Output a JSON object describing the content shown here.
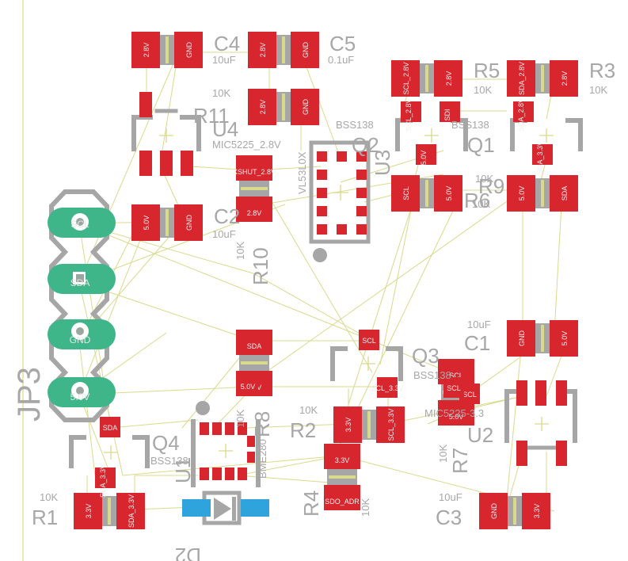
{
  "board": {
    "colors": {
      "background": "#ffffff",
      "pad": "#d8262f",
      "pad_dark": "#b81c24",
      "silk": "#a6a6a6",
      "silk_text": "#a7a7a7",
      "ratsnest": "#d9d98c",
      "header_pad": "#3fb58a",
      "diode_pad": "#2fa4dc",
      "edge": "#e8e090"
    },
    "components": [
      {
        "id": "C4",
        "label": "C4",
        "value": "10uF",
        "pads": [
          "2.8V",
          "GND"
        ]
      },
      {
        "id": "C5",
        "label": "C5",
        "value": "0.1uF",
        "pads": [
          "2.8V",
          "GND"
        ]
      },
      {
        "id": "R11",
        "label": "R11",
        "value": "10K",
        "pads": [
          "2.8V",
          "GND"
        ]
      },
      {
        "id": "U4",
        "label": "U4",
        "value": "MIC5225_2.8V"
      },
      {
        "id": "C2",
        "label": "C2",
        "value": "10uF",
        "pads": [
          "5.0V",
          "GND"
        ]
      },
      {
        "id": "R10",
        "label": "R10",
        "value": "10K",
        "pads": [
          "XSHUT_2.8V",
          "2.8V"
        ]
      },
      {
        "id": "U3",
        "label": "U3",
        "value": "VL53L0X"
      },
      {
        "id": "Q2",
        "label": "Q2",
        "value": "BSS138"
      },
      {
        "id": "Q1",
        "label": "Q1",
        "value": "BSS138"
      },
      {
        "id": "R5",
        "label": "R5",
        "value": "10K",
        "pads": [
          "SCL_2.8V",
          "2.8V"
        ]
      },
      {
        "id": "R3",
        "label": "R3",
        "value": "10K",
        "pads": [
          "SDA_2.8V",
          "2.8V"
        ]
      },
      {
        "id": "R6",
        "label": "R6",
        "value": "10K",
        "pads": [
          "SCL",
          "5.0V"
        ]
      },
      {
        "id": "R9",
        "label": "R9",
        "value": "10K",
        "pads": [
          "5.0V",
          "SDA"
        ]
      },
      {
        "id": "JP3",
        "label": "JP3",
        "pins": [
          "SCL",
          "SDA",
          "GND",
          "5.0V"
        ]
      },
      {
        "id": "C1",
        "label": "C1",
        "value": "10uF",
        "pads": [
          "GND",
          "5.0V"
        ]
      },
      {
        "id": "Q3",
        "label": "Q3",
        "value": "BSS138"
      },
      {
        "id": "R8",
        "label": "R8",
        "value": "10K",
        "pads": [
          "SDA",
          "5.0V"
        ]
      },
      {
        "id": "R2",
        "label": "R2",
        "value": "10K",
        "pads": [
          "3.3V",
          "SCL_3.3V"
        ]
      },
      {
        "id": "R7",
        "label": "R7",
        "value": "10K",
        "pads": [
          "SCL",
          "5.0V"
        ]
      },
      {
        "id": "U2",
        "label": "U2",
        "value": "MIC5225-3.3"
      },
      {
        "id": "Q4",
        "label": "Q4",
        "value": "BSS138"
      },
      {
        "id": "U1",
        "label": "U1",
        "value": "BME280"
      },
      {
        "id": "R4",
        "label": "R4",
        "value": "10K",
        "pads": [
          "3.3V",
          "SDO_ADR"
        ]
      },
      {
        "id": "R1",
        "label": "R1",
        "value": "10K",
        "pads": [
          "3.3V",
          "SDA_3.3V"
        ]
      },
      {
        "id": "C3",
        "label": "C3",
        "value": "10uF",
        "pads": [
          "GND",
          "3.3V"
        ]
      },
      {
        "id": "D2",
        "label": "D2"
      }
    ],
    "misc_pads": [
      "SCL",
      "5.0V",
      "SDA",
      "5.0V",
      "SDA_3.3V",
      "SDI",
      "SCL",
      "SCL_2.8V",
      "SDA_2.8V",
      "SDA_3.3V",
      "SCL_3.3V"
    ]
  }
}
